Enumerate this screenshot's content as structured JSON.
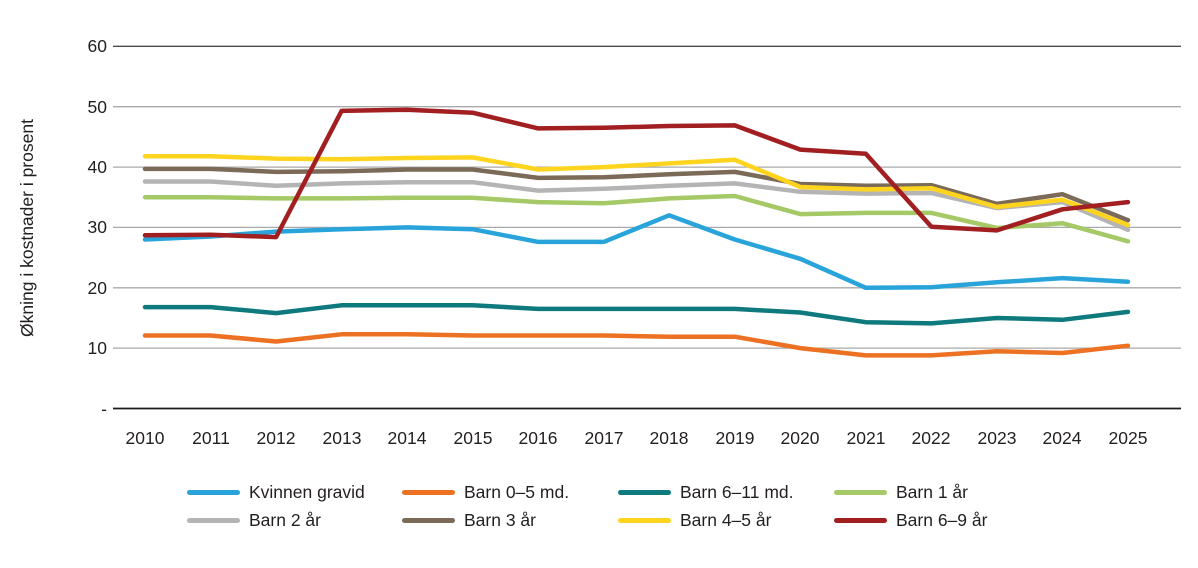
{
  "page": {
    "background": "#FFFFFF"
  },
  "colors": {
    "text": "#231F20",
    "gridline": "#A9A9A9",
    "gridline_top": "#4D4D4D",
    "axis_zero_line": "#1A1A1A"
  },
  "y_axis": {
    "title": "Økning i kostnader i prosent",
    "tick_labels": [
      "60",
      "50",
      "40",
      "30",
      "20",
      "10",
      "-"
    ],
    "tick_values": [
      60,
      50,
      40,
      30,
      20,
      10,
      0
    ]
  },
  "x_axis": {
    "labels": [
      "2010",
      "2011",
      "2012",
      "2013",
      "2014",
      "2015",
      "2016",
      "2017",
      "2018",
      "2019",
      "2020",
      "2021",
      "2022",
      "2023",
      "2024",
      "2025"
    ]
  },
  "chart_data": {
    "type": "line",
    "title": "",
    "xlabel": "",
    "ylabel": "Økning i kostnader i prosent",
    "ylim": [
      0,
      60
    ],
    "grid": "horizontal",
    "legend_position": "bottom",
    "x": [
      2010,
      2011,
      2012,
      2013,
      2014,
      2015,
      2016,
      2017,
      2018,
      2019,
      2020,
      2021,
      2022,
      2023,
      2024,
      2025
    ],
    "series": [
      {
        "name": "Kvinnen gravid",
        "color": "#29A4DB",
        "values": [
          28.0,
          28.5,
          29.3,
          29.7,
          30.0,
          29.7,
          27.6,
          27.6,
          32.0,
          28.0,
          24.8,
          20.0,
          20.1,
          20.9,
          21.6,
          21.0
        ]
      },
      {
        "name": "Barn 0–5 md.",
        "color": "#EC7123",
        "values": [
          12.1,
          12.1,
          11.1,
          12.3,
          12.3,
          12.1,
          12.1,
          12.1,
          11.9,
          11.9,
          10.0,
          8.8,
          8.8,
          9.5,
          9.2,
          10.4
        ]
      },
      {
        "name": "Barn 6–11 md.",
        "color": "#0E7A7D",
        "values": [
          16.8,
          16.8,
          15.8,
          17.1,
          17.1,
          17.1,
          16.5,
          16.5,
          16.5,
          16.5,
          15.9,
          14.3,
          14.1,
          15.0,
          14.7,
          16.0
        ]
      },
      {
        "name": "Barn 1 år",
        "color": "#A5C966",
        "values": [
          35.0,
          35.0,
          34.8,
          34.8,
          34.9,
          34.9,
          34.2,
          34.0,
          34.8,
          35.2,
          32.2,
          32.4,
          32.4,
          29.9,
          30.7,
          27.7
        ]
      },
      {
        "name": "Barn 2 år",
        "color": "#B4B4B4",
        "values": [
          37.6,
          37.6,
          36.9,
          37.3,
          37.5,
          37.5,
          36.1,
          36.4,
          36.9,
          37.3,
          35.9,
          35.6,
          35.7,
          33.2,
          34.2,
          29.6
        ]
      },
      {
        "name": "Barn 3 år",
        "color": "#7A6A57",
        "values": [
          39.7,
          39.7,
          39.2,
          39.3,
          39.6,
          39.6,
          38.2,
          38.3,
          38.8,
          39.2,
          37.2,
          36.9,
          37.0,
          33.9,
          35.5,
          31.2
        ]
      },
      {
        "name": "Barn 4–5 år",
        "color": "#FFD41E",
        "values": [
          41.8,
          41.8,
          41.4,
          41.3,
          41.5,
          41.6,
          39.6,
          40.0,
          40.6,
          41.2,
          36.7,
          36.3,
          36.5,
          33.4,
          34.6,
          30.4
        ]
      },
      {
        "name": "Barn 6–9 år",
        "color": "#A11E21",
        "values": [
          28.7,
          28.8,
          28.4,
          49.3,
          49.5,
          49.0,
          46.4,
          46.5,
          46.8,
          46.9,
          42.9,
          42.2,
          30.1,
          29.5,
          33.0,
          34.2
        ]
      }
    ]
  }
}
